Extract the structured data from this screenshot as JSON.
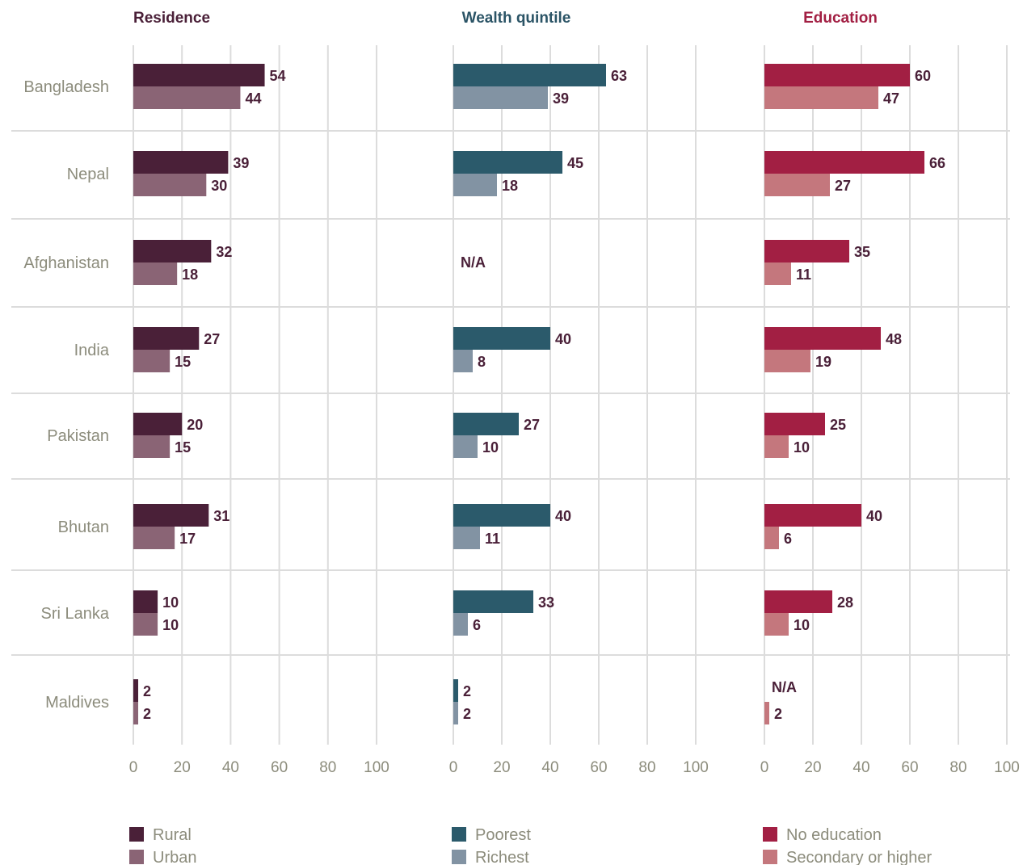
{
  "chart_data": [
    {
      "type": "bar",
      "title": "Residence",
      "title_color": "#4a2038",
      "categories": [
        "Bangladesh",
        "Nepal",
        "Afghanistan",
        "India",
        "Pakistan",
        "Bhutan",
        "Sri Lanka",
        "Maldives"
      ],
      "xlim": [
        0,
        100
      ],
      "xticks": [
        "0",
        "20",
        "40",
        "60",
        "80",
        "100"
      ],
      "series": [
        {
          "name": "Rural",
          "color": "#4a2038",
          "values": [
            54,
            39,
            32,
            27,
            20,
            31,
            10,
            2
          ]
        },
        {
          "name": "Urban",
          "color": "#8a6475",
          "values": [
            44,
            30,
            18,
            15,
            15,
            17,
            10,
            2
          ]
        }
      ]
    },
    {
      "type": "bar",
      "title": "Wealth quintile",
      "title_color": "#2b5466",
      "categories": [
        "Bangladesh",
        "Nepal",
        "Afghanistan",
        "India",
        "Pakistan",
        "Bhutan",
        "Sri Lanka",
        "Maldives"
      ],
      "xlim": [
        0,
        100
      ],
      "xticks": [
        "0",
        "20",
        "40",
        "60",
        "80",
        "100"
      ],
      "series": [
        {
          "name": "Poorest",
          "color": "#2b5a6b",
          "values": [
            63,
            45,
            null,
            40,
            27,
            40,
            33,
            2
          ]
        },
        {
          "name": "Richest",
          "color": "#8293a3",
          "values": [
            39,
            18,
            null,
            8,
            10,
            11,
            6,
            2
          ]
        }
      ],
      "annotations": [
        {
          "category": "Afghanistan",
          "text": "N/A"
        }
      ]
    },
    {
      "type": "bar",
      "title": "Education",
      "title_color": "#a21f43",
      "categories": [
        "Bangladesh",
        "Nepal",
        "Afghanistan",
        "India",
        "Pakistan",
        "Bhutan",
        "Sri Lanka",
        "Maldives"
      ],
      "xlim": [
        0,
        100
      ],
      "xticks": [
        "0",
        "20",
        "40",
        "60",
        "80",
        "100"
      ],
      "series": [
        {
          "name": "No education",
          "color": "#a21f43",
          "values": [
            60,
            66,
            35,
            48,
            25,
            40,
            28,
            null
          ]
        },
        {
          "name": "Secondary or higher",
          "color": "#c4777d",
          "values": [
            47,
            27,
            11,
            19,
            10,
            6,
            10,
            2
          ]
        }
      ],
      "annotations": [
        {
          "category": "Maldives",
          "text": "N/A"
        }
      ]
    }
  ],
  "value_label_color": "#4a2038",
  "axis_label_color": "#8c8c7c",
  "grid_color": "#dcdcdc"
}
